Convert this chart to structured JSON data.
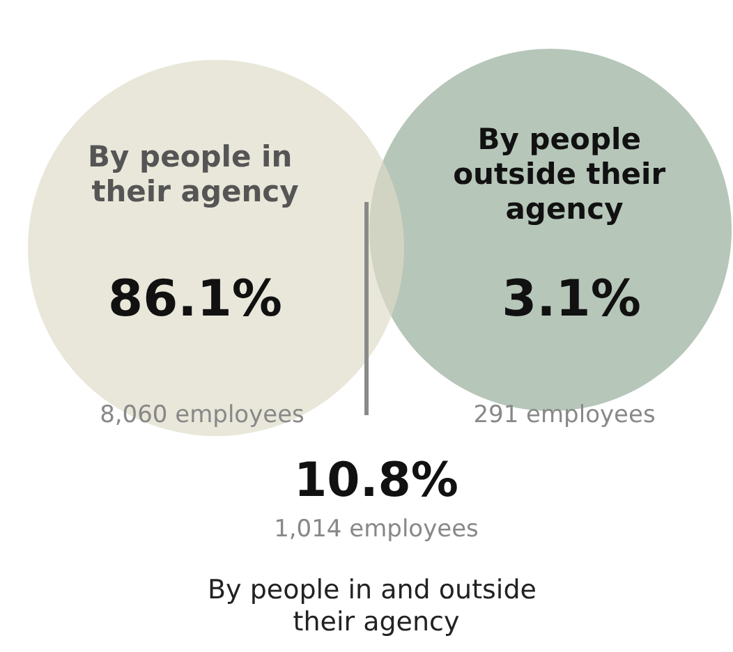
{
  "chart_data": {
    "type": "other",
    "categories": [
      "By people in their agency",
      "By people outside their agency",
      "By people in and outside their agency"
    ],
    "values": [
      86.1,
      3.1,
      10.8
    ],
    "value_labels": [
      "86.1%",
      "3.1%",
      "10.8%"
    ],
    "colors": [
      "#e9e7d9",
      "#b6c6b9",
      "#d3d4c1"
    ],
    "annotations": [
      "8,060 employees",
      "291 employees",
      "1,014 employees"
    ]
  }
}
